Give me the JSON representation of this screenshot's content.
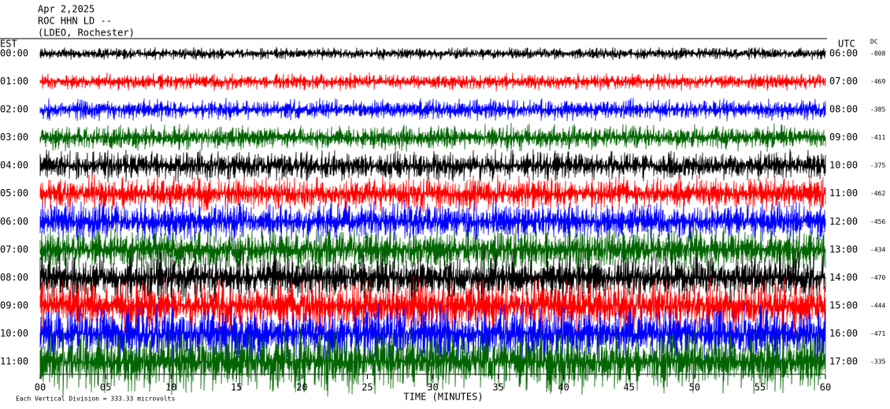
{
  "chart_data": {
    "type": "helicorder",
    "header": [
      "Apr 2,2025",
      "ROC HHN LD --",
      "(LDEO, Rochester)"
    ],
    "left_title": "EST",
    "right_title": "UTC",
    "dc_title": "DC",
    "rows": [
      {
        "est": "00:00",
        "utc": "06:00",
        "dc": -808,
        "color": "#000000"
      },
      {
        "est": "01:00",
        "utc": "07:00",
        "dc": -469,
        "color": "#ff0000"
      },
      {
        "est": "02:00",
        "utc": "08:00",
        "dc": -385,
        "color": "#0000ff"
      },
      {
        "est": "03:00",
        "utc": "09:00",
        "dc": -411,
        "color": "#006400"
      },
      {
        "est": "04:00",
        "utc": "10:00",
        "dc": -375,
        "color": "#000000"
      },
      {
        "est": "05:00",
        "utc": "11:00",
        "dc": -462,
        "color": "#ff0000"
      },
      {
        "est": "06:00",
        "utc": "12:00",
        "dc": -456,
        "color": "#0000ff"
      },
      {
        "est": "07:00",
        "utc": "13:00",
        "dc": -434,
        "color": "#006400"
      },
      {
        "est": "08:00",
        "utc": "14:00",
        "dc": -470,
        "color": "#000000"
      },
      {
        "est": "09:00",
        "utc": "15:00",
        "dc": -444,
        "color": "#ff0000"
      },
      {
        "est": "10:00",
        "utc": "16:00",
        "dc": -471,
        "color": "#0000ff"
      },
      {
        "est": "11:00",
        "utc": "17:00",
        "dc": -335,
        "color": "#006400"
      }
    ],
    "xlim": [
      0,
      60
    ],
    "xticks": [
      {
        "value": 0,
        "label": "00"
      },
      {
        "value": 5,
        "label": "05"
      },
      10,
      15,
      20,
      25,
      30,
      35,
      40,
      45,
      50,
      55,
      60
    ],
    "xlabel": "TIME (MINUTES)",
    "footer": "Each Vertical Division =  333.33 microvolts"
  }
}
